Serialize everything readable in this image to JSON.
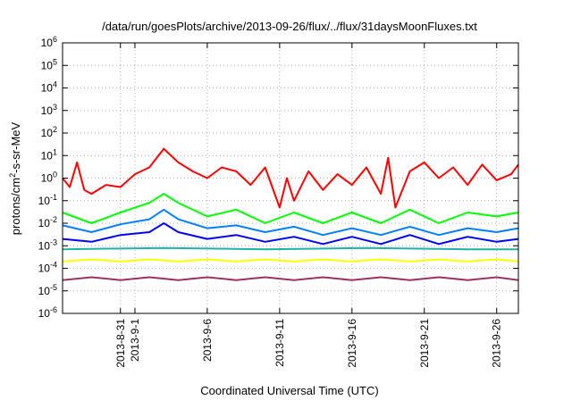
{
  "chart_data": {
    "type": "line",
    "title": "/data/run/goesPlots/archive/2013-09-26/flux/../flux/31daysMoonFluxes.txt",
    "xlabel": "Coordinated Universal Time (UTC)",
    "ylabel_html": "protons/cm<tspan baseline-shift=\"super\" font-size=\"9\">2</tspan>-s-sr-MeV",
    "ylabel": "protons/cm2-s-sr-MeV",
    "yscale": "log",
    "ylim": [
      1e-06,
      1000000.0
    ],
    "y_ticks": [
      {
        "exp": "-6",
        "value": 1e-06
      },
      {
        "exp": "-5",
        "value": 1e-05
      },
      {
        "exp": "-4",
        "value": 0.0001
      },
      {
        "exp": "-3",
        "value": 0.001
      },
      {
        "exp": "-2",
        "value": 0.01
      },
      {
        "exp": "-1",
        "value": 0.1
      },
      {
        "exp": "0",
        "value": 1
      },
      {
        "exp": "1",
        "value": 10
      },
      {
        "exp": "2",
        "value": 100
      },
      {
        "exp": "3",
        "value": 1000
      },
      {
        "exp": "4",
        "value": 10000
      },
      {
        "exp": "5",
        "value": 100000
      },
      {
        "exp": "6",
        "value": 1000000
      }
    ],
    "xlim": [
      "2013-08-27",
      "2013-09-27T12:00"
    ],
    "x_ticks": [
      {
        "date": "2013-08-31",
        "label": "2013-8-31"
      },
      {
        "date": "2013-09-01",
        "label": "2013-9-1"
      },
      {
        "date": "2013-09-06",
        "label": "2013-9-6"
      },
      {
        "date": "2013-09-11",
        "label": "2013-9-11"
      },
      {
        "date": "2013-09-16",
        "label": "2013-9-16"
      },
      {
        "date": "2013-09-21",
        "label": "2013-9-21"
      },
      {
        "date": "2013-09-26",
        "label": "2013-9-26"
      }
    ],
    "grid": true,
    "legend": "none",
    "series": [
      {
        "color": "#993366",
        "width": 2,
        "points": [
          [
            "2013-08-27",
            3e-05
          ],
          [
            "2013-08-29",
            4e-05
          ],
          [
            "2013-08-31",
            3e-05
          ],
          [
            "2013-09-02",
            4e-05
          ],
          [
            "2013-09-04",
            3e-05
          ],
          [
            "2013-09-06",
            4e-05
          ],
          [
            "2013-09-08",
            3e-05
          ],
          [
            "2013-09-10",
            4e-05
          ],
          [
            "2013-09-12",
            3e-05
          ],
          [
            "2013-09-14",
            4e-05
          ],
          [
            "2013-09-16",
            3e-05
          ],
          [
            "2013-09-18",
            4e-05
          ],
          [
            "2013-09-20",
            3e-05
          ],
          [
            "2013-09-22",
            4e-05
          ],
          [
            "2013-09-24",
            3e-05
          ],
          [
            "2013-09-26",
            4e-05
          ],
          [
            "2013-09-27T12:00",
            3e-05
          ]
        ]
      },
      {
        "color": "#ffff00",
        "width": 2,
        "points": [
          [
            "2013-08-27",
            0.0002
          ],
          [
            "2013-08-29",
            0.00025
          ],
          [
            "2013-08-31",
            0.0002
          ],
          [
            "2013-09-02",
            0.00025
          ],
          [
            "2013-09-04",
            0.0002
          ],
          [
            "2013-09-06",
            0.00025
          ],
          [
            "2013-09-08",
            0.0002
          ],
          [
            "2013-09-10",
            0.00025
          ],
          [
            "2013-09-12",
            0.0002
          ],
          [
            "2013-09-14",
            0.00025
          ],
          [
            "2013-09-16",
            0.0002
          ],
          [
            "2013-09-18",
            0.00025
          ],
          [
            "2013-09-20",
            0.0002
          ],
          [
            "2013-09-22",
            0.00025
          ],
          [
            "2013-09-24",
            0.0002
          ],
          [
            "2013-09-26",
            0.00025
          ],
          [
            "2013-09-27T12:00",
            0.0002
          ]
        ]
      },
      {
        "color": "#20b2aa",
        "width": 2,
        "points": [
          [
            "2013-08-27",
            0.0007
          ],
          [
            "2013-09-03",
            0.0008
          ],
          [
            "2013-09-10",
            0.0007
          ],
          [
            "2013-09-17",
            0.0008
          ],
          [
            "2013-09-24",
            0.0007
          ],
          [
            "2013-09-27T12:00",
            0.0007
          ]
        ]
      },
      {
        "color": "#00ff00",
        "width": 2,
        "points": [
          [
            "2013-08-27",
            0.03
          ],
          [
            "2013-08-29",
            0.01
          ],
          [
            "2013-08-31",
            0.03
          ],
          [
            "2013-09-02",
            0.08
          ],
          [
            "2013-09-03",
            0.2
          ],
          [
            "2013-09-04",
            0.08
          ],
          [
            "2013-09-06",
            0.02
          ],
          [
            "2013-09-08",
            0.04
          ],
          [
            "2013-09-10",
            0.01
          ],
          [
            "2013-09-12",
            0.03
          ],
          [
            "2013-09-14",
            0.01
          ],
          [
            "2013-09-16",
            0.03
          ],
          [
            "2013-09-18",
            0.01
          ],
          [
            "2013-09-20",
            0.04
          ],
          [
            "2013-09-22",
            0.01
          ],
          [
            "2013-09-24",
            0.03
          ],
          [
            "2013-09-26",
            0.02
          ],
          [
            "2013-09-27T12:00",
            0.03
          ]
        ]
      },
      {
        "color": "#0080ff",
        "width": 2,
        "points": [
          [
            "2013-08-27",
            0.008
          ],
          [
            "2013-08-29",
            0.004
          ],
          [
            "2013-08-31",
            0.009
          ],
          [
            "2013-09-02",
            0.015
          ],
          [
            "2013-09-03",
            0.04
          ],
          [
            "2013-09-04",
            0.015
          ],
          [
            "2013-09-06",
            0.006
          ],
          [
            "2013-09-08",
            0.008
          ],
          [
            "2013-09-10",
            0.004
          ],
          [
            "2013-09-12",
            0.007
          ],
          [
            "2013-09-14",
            0.003
          ],
          [
            "2013-09-16",
            0.006
          ],
          [
            "2013-09-18",
            0.003
          ],
          [
            "2013-09-20",
            0.007
          ],
          [
            "2013-09-22",
            0.003
          ],
          [
            "2013-09-24",
            0.006
          ],
          [
            "2013-09-26",
            0.004
          ],
          [
            "2013-09-27T12:00",
            0.006
          ]
        ]
      },
      {
        "color": "#0000ff",
        "width": 2,
        "points": [
          [
            "2013-08-27",
            0.002
          ],
          [
            "2013-08-29",
            0.0015
          ],
          [
            "2013-08-31",
            0.003
          ],
          [
            "2013-09-02",
            0.004
          ],
          [
            "2013-09-03",
            0.01
          ],
          [
            "2013-09-04",
            0.004
          ],
          [
            "2013-09-06",
            0.002
          ],
          [
            "2013-09-08",
            0.003
          ],
          [
            "2013-09-10",
            0.0015
          ],
          [
            "2013-09-12",
            0.0025
          ],
          [
            "2013-09-14",
            0.0012
          ],
          [
            "2013-09-16",
            0.0025
          ],
          [
            "2013-09-18",
            0.0012
          ],
          [
            "2013-09-20",
            0.003
          ],
          [
            "2013-09-22",
            0.0012
          ],
          [
            "2013-09-24",
            0.0025
          ],
          [
            "2013-09-26",
            0.0015
          ],
          [
            "2013-09-27T12:00",
            0.002
          ]
        ]
      },
      {
        "color": "#ff0000",
        "width": 2,
        "points": [
          [
            "2013-08-27",
            1
          ],
          [
            "2013-08-27T12:00",
            0.4
          ],
          [
            "2013-08-28",
            5
          ],
          [
            "2013-08-28T12:00",
            0.3
          ],
          [
            "2013-08-29",
            0.2
          ],
          [
            "2013-08-30",
            0.5
          ],
          [
            "2013-08-31",
            0.4
          ],
          [
            "2013-09-01",
            1.5
          ],
          [
            "2013-09-02",
            3
          ],
          [
            "2013-09-03",
            20
          ],
          [
            "2013-09-04",
            5
          ],
          [
            "2013-09-05",
            2
          ],
          [
            "2013-09-06",
            1
          ],
          [
            "2013-09-07",
            3
          ],
          [
            "2013-09-08",
            2
          ],
          [
            "2013-09-09",
            0.5
          ],
          [
            "2013-09-10",
            3
          ],
          [
            "2013-09-11",
            0.05
          ],
          [
            "2013-09-11T12:00",
            1
          ],
          [
            "2013-09-12",
            0.1
          ],
          [
            "2013-09-13",
            2
          ],
          [
            "2013-09-14",
            0.3
          ],
          [
            "2013-09-15",
            1.5
          ],
          [
            "2013-09-16",
            0.5
          ],
          [
            "2013-09-17",
            3
          ],
          [
            "2013-09-18",
            0.2
          ],
          [
            "2013-09-18T12:00",
            8
          ],
          [
            "2013-09-19",
            0.05
          ],
          [
            "2013-09-20",
            2
          ],
          [
            "2013-09-21",
            5
          ],
          [
            "2013-09-22",
            1
          ],
          [
            "2013-09-23",
            3
          ],
          [
            "2013-09-24",
            0.5
          ],
          [
            "2013-09-25",
            4
          ],
          [
            "2013-09-26",
            0.8
          ],
          [
            "2013-09-27",
            1.5
          ],
          [
            "2013-09-27T12:00",
            4
          ]
        ]
      }
    ]
  }
}
